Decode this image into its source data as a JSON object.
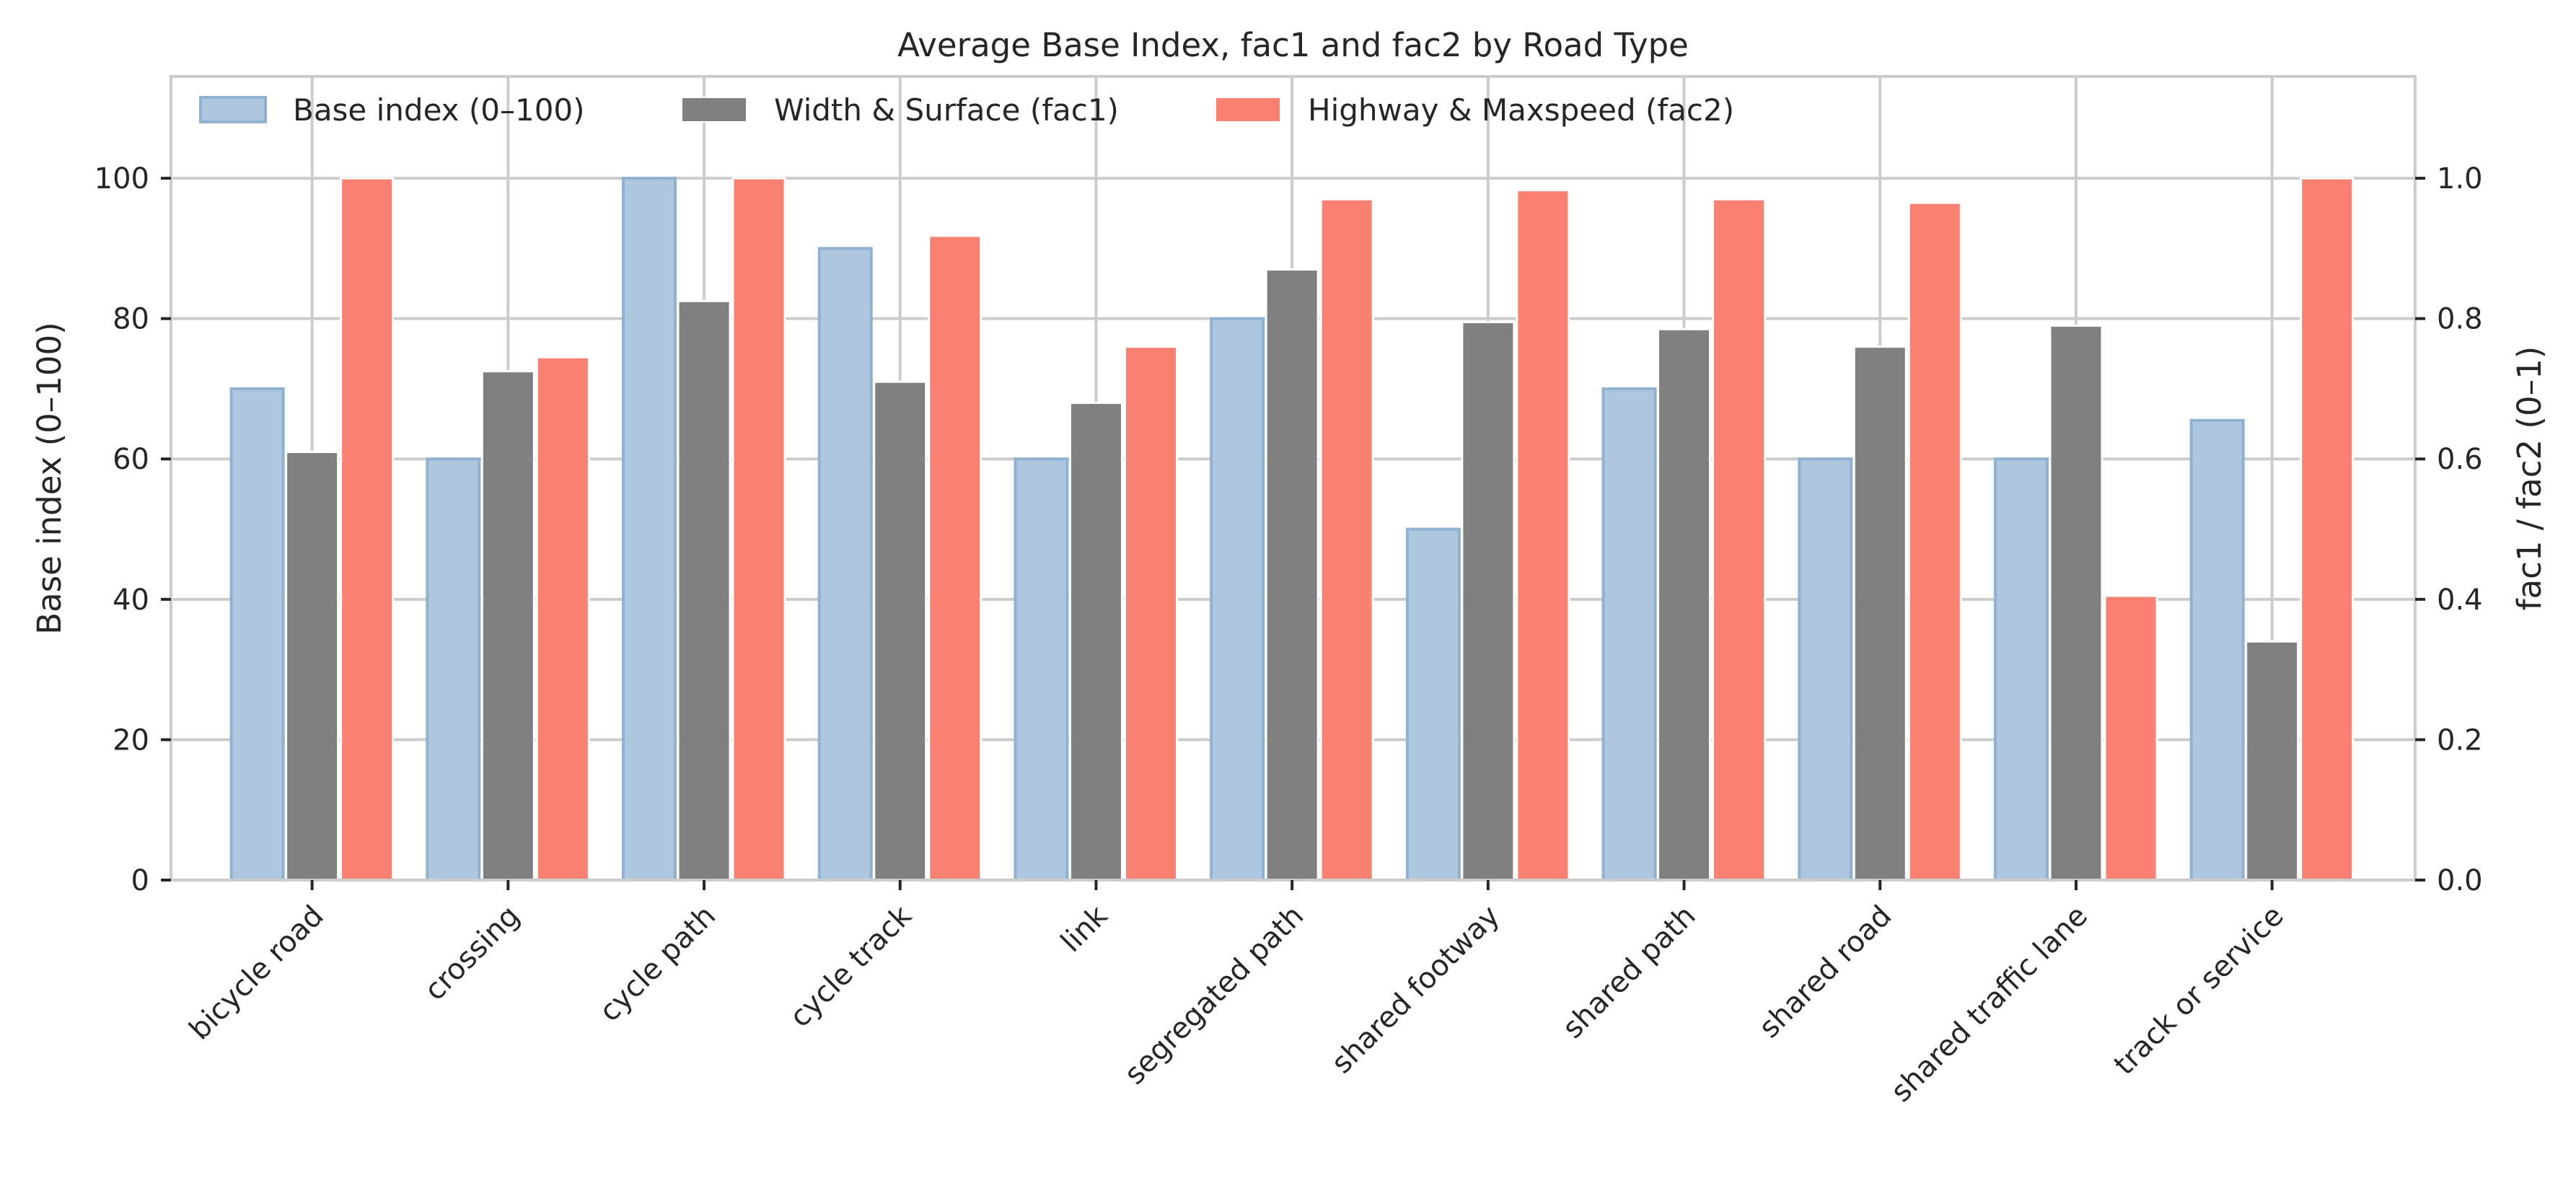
{
  "chart_data": {
    "type": "bar",
    "title": "Average Base Index, fac1 and fac2 by Road Type",
    "ylabel_left": "Base index (0–100)",
    "ylabel_right": "fac1 / fac2 (0–1)",
    "xlabel": "",
    "categories": [
      "bicycle road",
      "crossing",
      "cycle path",
      "cycle track",
      "link",
      "segregated path",
      "shared footway",
      "shared path",
      "shared road",
      "shared traffic lane",
      "track or service"
    ],
    "series": [
      {
        "name": "Base index (0–100)",
        "axis": "left",
        "color": "#aec6de",
        "edge_color": "#8fb1d2",
        "values": [
          70,
          60,
          100,
          90,
          60,
          80,
          50,
          70,
          60,
          60,
          65.5
        ]
      },
      {
        "name": "Width & Surface (fac1)",
        "axis": "right",
        "color": "#808080",
        "edge_color": "#ffffff",
        "values": [
          0.61,
          0.725,
          0.825,
          0.71,
          0.68,
          0.87,
          0.795,
          0.785,
          0.76,
          0.79,
          0.34
        ]
      },
      {
        "name": "Highway & Maxspeed (fac2)",
        "axis": "right",
        "color": "#fa8072",
        "edge_color": "#ffffff",
        "values": [
          1.0,
          0.745,
          1.0,
          0.918,
          0.76,
          0.97,
          0.983,
          0.97,
          0.965,
          0.405,
          1.0
        ]
      }
    ],
    "ylim_left": [
      0,
      114.5
    ],
    "ylim_right": [
      0,
      1.145
    ],
    "yticks_left": [
      "0",
      "20",
      "40",
      "60",
      "80",
      "100"
    ],
    "yticks_right": [
      "0.0",
      "0.2",
      "0.4",
      "0.6",
      "0.8",
      "1.0"
    ],
    "grid": true,
    "legend_position": "top-left",
    "legend_columns": 3
  }
}
